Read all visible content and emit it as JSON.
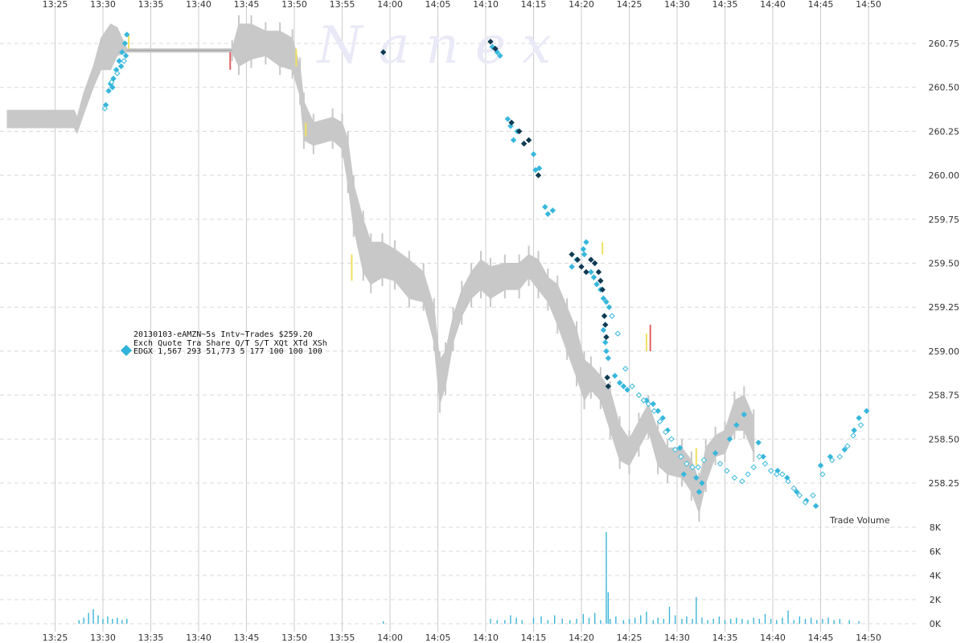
{
  "watermark": "N a n e x",
  "legend": {
    "title": "20130103-eAMZN~5s Intv~Trades $259.20",
    "header": "Exch Quote Tra  Share  Q/T   S/T  XQt XTd XSh",
    "row": "EDGX 1,567 293 51,773     5   177 100 100 100",
    "marker_color": "#2fb3d9"
  },
  "colors": {
    "quote_band": "#c8c8c8",
    "trade_light": "#37b7dc",
    "trade_dark": "#0f3b52",
    "trade_hollow_stroke": "#37b7dc",
    "volume_bar": "#3ab5d6",
    "grid": "#cccccc",
    "accent_yellow": "#f0e060",
    "accent_red": "#e06060"
  },
  "chart_data": {
    "type": "scatter",
    "title": "20130103-eAMZN~5s Intv~Trades $259.20",
    "x_ticks": [
      "13:25",
      "13:30",
      "13:35",
      "13:40",
      "13:45",
      "13:50",
      "13:55",
      "14:00",
      "14:05",
      "14:10",
      "14:15",
      "14:20",
      "14:25",
      "14:30",
      "14:35",
      "14:40",
      "14:45",
      "14:50"
    ],
    "y_ticks": [
      "258.25",
      "258.50",
      "258.75",
      "259.00",
      "259.25",
      "259.50",
      "259.75",
      "260.00",
      "260.25",
      "260.50",
      "260.75"
    ],
    "ylim": [
      258.0,
      260.85
    ],
    "xlim_minutes": [
      0,
      90
    ],
    "volume_label": "Trade Volume",
    "volume_ticks": [
      "0K",
      "2K",
      "4K",
      "6K",
      "8K"
    ],
    "volume_ylim": [
      0,
      8000
    ],
    "grid": true,
    "quote_range": [
      {
        "t": 0.0,
        "lo": 260.27,
        "hi": 260.37
      },
      {
        "t": 7.0,
        "lo": 260.27,
        "hi": 260.37
      },
      {
        "t": 7.3,
        "lo": 260.24,
        "hi": 260.33
      },
      {
        "t": 8.0,
        "lo": 260.35,
        "hi": 260.47
      },
      {
        "t": 9.0,
        "lo": 260.5,
        "hi": 260.62
      },
      {
        "t": 9.8,
        "lo": 260.6,
        "hi": 260.78
      },
      {
        "t": 10.8,
        "lo": 260.6,
        "hi": 260.86
      },
      {
        "t": 11.5,
        "lo": 260.68,
        "hi": 260.84
      },
      {
        "t": 12.5,
        "lo": 260.7,
        "hi": 260.72
      },
      {
        "t": 23.5,
        "lo": 260.7,
        "hi": 260.72
      },
      {
        "t": 24.2,
        "lo": 260.62,
        "hi": 260.86
      },
      {
        "t": 25.5,
        "lo": 260.66,
        "hi": 260.86
      },
      {
        "t": 27.0,
        "lo": 260.68,
        "hi": 260.82
      },
      {
        "t": 28.5,
        "lo": 260.62,
        "hi": 260.82
      },
      {
        "t": 29.8,
        "lo": 260.6,
        "hi": 260.78
      },
      {
        "t": 30.6,
        "lo": 260.45,
        "hi": 260.62
      },
      {
        "t": 31.0,
        "lo": 260.2,
        "hi": 260.42
      },
      {
        "t": 32.0,
        "lo": 260.17,
        "hi": 260.3
      },
      {
        "t": 34.0,
        "lo": 260.2,
        "hi": 260.33
      },
      {
        "t": 35.0,
        "lo": 260.15,
        "hi": 260.3
      },
      {
        "t": 35.6,
        "lo": 259.95,
        "hi": 260.2
      },
      {
        "t": 36.2,
        "lo": 259.7,
        "hi": 259.95
      },
      {
        "t": 37.2,
        "lo": 259.45,
        "hi": 259.75
      },
      {
        "t": 38.0,
        "lo": 259.38,
        "hi": 259.62
      },
      {
        "t": 39.2,
        "lo": 259.42,
        "hi": 259.62
      },
      {
        "t": 40.5,
        "lo": 259.4,
        "hi": 259.58
      },
      {
        "t": 42.0,
        "lo": 259.3,
        "hi": 259.52
      },
      {
        "t": 43.5,
        "lo": 259.28,
        "hi": 259.45
      },
      {
        "t": 44.6,
        "lo": 259.05,
        "hi": 259.25
      },
      {
        "t": 45.2,
        "lo": 258.7,
        "hi": 258.95
      },
      {
        "t": 45.8,
        "lo": 258.8,
        "hi": 259.0
      },
      {
        "t": 46.6,
        "lo": 259.05,
        "hi": 259.2
      },
      {
        "t": 47.5,
        "lo": 259.2,
        "hi": 259.35
      },
      {
        "t": 48.5,
        "lo": 259.3,
        "hi": 259.45
      },
      {
        "t": 49.5,
        "lo": 259.35,
        "hi": 259.52
      },
      {
        "t": 50.5,
        "lo": 259.3,
        "hi": 259.48
      },
      {
        "t": 52.0,
        "lo": 259.35,
        "hi": 259.5
      },
      {
        "t": 53.5,
        "lo": 259.35,
        "hi": 259.5
      },
      {
        "t": 54.5,
        "lo": 259.42,
        "hi": 259.55
      },
      {
        "t": 55.5,
        "lo": 259.35,
        "hi": 259.52
      },
      {
        "t": 56.5,
        "lo": 259.28,
        "hi": 259.42
      },
      {
        "t": 57.5,
        "lo": 259.15,
        "hi": 259.38
      },
      {
        "t": 58.5,
        "lo": 259.0,
        "hi": 259.25
      },
      {
        "t": 59.5,
        "lo": 258.85,
        "hi": 259.12
      },
      {
        "t": 60.3,
        "lo": 258.72,
        "hi": 258.95
      },
      {
        "t": 61.0,
        "lo": 258.78,
        "hi": 258.92
      },
      {
        "t": 62.0,
        "lo": 258.72,
        "hi": 258.86
      },
      {
        "t": 63.0,
        "lo": 258.55,
        "hi": 258.78
      },
      {
        "t": 64.0,
        "lo": 258.38,
        "hi": 258.58
      },
      {
        "t": 65.0,
        "lo": 258.35,
        "hi": 258.5
      },
      {
        "t": 66.0,
        "lo": 258.45,
        "hi": 258.6
      },
      {
        "t": 67.0,
        "lo": 258.55,
        "hi": 258.7
      },
      {
        "t": 68.0,
        "lo": 258.35,
        "hi": 258.55
      },
      {
        "t": 69.0,
        "lo": 258.3,
        "hi": 258.45
      },
      {
        "t": 70.5,
        "lo": 258.28,
        "hi": 258.45
      },
      {
        "t": 71.5,
        "lo": 258.2,
        "hi": 258.38
      },
      {
        "t": 72.3,
        "lo": 258.08,
        "hi": 258.26
      },
      {
        "t": 73.0,
        "lo": 258.25,
        "hi": 258.45
      },
      {
        "t": 74.0,
        "lo": 258.4,
        "hi": 258.52
      },
      {
        "t": 75.0,
        "lo": 258.42,
        "hi": 258.55
      },
      {
        "t": 76.0,
        "lo": 258.55,
        "hi": 258.72
      },
      {
        "t": 77.0,
        "lo": 258.55,
        "hi": 258.75
      },
      {
        "t": 78.0,
        "lo": 258.42,
        "hi": 258.62
      }
    ],
    "trades_light": [
      [
        10.3,
        260.4
      ],
      [
        10.6,
        260.48
      ],
      [
        10.8,
        260.52
      ],
      [
        11.1,
        260.55
      ],
      [
        11.4,
        260.6
      ],
      [
        11.7,
        260.65
      ],
      [
        12.0,
        260.7
      ],
      [
        12.3,
        260.75
      ],
      [
        12.5,
        260.8
      ],
      [
        11.0,
        260.5
      ],
      [
        11.9,
        260.62
      ],
      [
        12.4,
        260.68
      ],
      [
        50.7,
        260.73
      ],
      [
        51.2,
        260.7
      ],
      [
        51.5,
        260.68
      ],
      [
        52.3,
        260.32
      ],
      [
        52.6,
        260.28
      ],
      [
        52.9,
        260.2
      ],
      [
        53.3,
        260.25
      ],
      [
        55.0,
        260.12
      ],
      [
        55.2,
        260.03
      ],
      [
        55.6,
        260.04
      ],
      [
        56.2,
        259.82
      ],
      [
        56.5,
        259.78
      ],
      [
        57.0,
        259.8
      ],
      [
        60.2,
        259.58
      ],
      [
        60.3,
        259.55
      ],
      [
        60.5,
        259.62
      ],
      [
        59.5,
        259.52
      ],
      [
        59.0,
        259.48
      ],
      [
        61.0,
        259.45
      ],
      [
        61.3,
        259.42
      ],
      [
        61.6,
        259.38
      ],
      [
        62.0,
        259.35
      ],
      [
        62.3,
        259.3
      ],
      [
        62.6,
        259.28
      ],
      [
        62.9,
        259.25
      ],
      [
        62.3,
        259.12
      ],
      [
        62.5,
        259.05
      ],
      [
        62.6,
        259.0
      ],
      [
        62.8,
        258.96
      ],
      [
        63.5,
        258.86
      ],
      [
        64.0,
        258.82
      ],
      [
        64.4,
        258.8
      ],
      [
        64.8,
        258.78
      ],
      [
        66.8,
        258.72
      ],
      [
        67.5,
        258.7
      ],
      [
        68.0,
        258.66
      ],
      [
        68.5,
        258.62
      ],
      [
        69.0,
        258.55
      ],
      [
        70.3,
        258.45
      ],
      [
        70.7,
        258.3
      ],
      [
        72.0,
        258.28
      ],
      [
        72.3,
        258.2
      ],
      [
        72.6,
        258.25
      ],
      [
        74.0,
        258.42
      ],
      [
        75.5,
        258.5
      ],
      [
        76.2,
        258.58
      ],
      [
        77.0,
        258.64
      ],
      [
        78.5,
        258.48
      ],
      [
        79.0,
        258.4
      ],
      [
        80.5,
        258.32
      ],
      [
        81.5,
        258.28
      ],
      [
        82.5,
        258.2
      ],
      [
        83.5,
        258.15
      ],
      [
        84.5,
        258.12
      ],
      [
        85.0,
        258.35
      ],
      [
        86.0,
        258.4
      ],
      [
        87.5,
        258.44
      ],
      [
        88.5,
        258.55
      ],
      [
        89.0,
        258.62
      ],
      [
        89.8,
        258.66
      ]
    ],
    "trades_dark": [
      [
        39.3,
        260.7
      ],
      [
        50.5,
        260.76
      ],
      [
        51.0,
        260.72
      ],
      [
        52.7,
        260.3
      ],
      [
        53.5,
        260.25
      ],
      [
        54.0,
        260.18
      ],
      [
        54.5,
        260.2
      ],
      [
        55.5,
        260.0
      ],
      [
        59.0,
        259.55
      ],
      [
        59.6,
        259.52
      ],
      [
        60.0,
        259.48
      ],
      [
        60.5,
        259.45
      ],
      [
        61.0,
        259.52
      ],
      [
        61.4,
        259.5
      ],
      [
        61.8,
        259.45
      ],
      [
        62.0,
        259.4
      ],
      [
        62.2,
        259.35
      ],
      [
        62.4,
        259.2
      ],
      [
        62.5,
        259.15
      ],
      [
        62.6,
        259.08
      ],
      [
        62.7,
        258.85
      ],
      [
        62.8,
        258.8
      ]
    ],
    "trades_hollow": [
      [
        10.2,
        260.38
      ],
      [
        10.9,
        260.53
      ],
      [
        11.5,
        260.58
      ],
      [
        12.2,
        260.65
      ],
      [
        63.2,
        259.2
      ],
      [
        63.8,
        259.1
      ],
      [
        64.6,
        258.9
      ],
      [
        65.3,
        258.8
      ],
      [
        66.0,
        258.75
      ],
      [
        66.5,
        258.72
      ],
      [
        67.0,
        258.7
      ],
      [
        67.6,
        258.66
      ],
      [
        68.2,
        258.6
      ],
      [
        68.8,
        258.54
      ],
      [
        69.4,
        258.5
      ],
      [
        69.8,
        258.44
      ],
      [
        70.4,
        258.4
      ],
      [
        71.0,
        258.36
      ],
      [
        71.6,
        258.34
      ],
      [
        72.2,
        258.34
      ],
      [
        72.8,
        258.38
      ],
      [
        74.5,
        258.36
      ],
      [
        75.2,
        258.32
      ],
      [
        76.0,
        258.28
      ],
      [
        76.8,
        258.26
      ],
      [
        77.4,
        258.3
      ],
      [
        78.0,
        258.34
      ],
      [
        78.6,
        258.4
      ],
      [
        79.2,
        258.36
      ],
      [
        79.8,
        258.32
      ],
      [
        80.4,
        258.3
      ],
      [
        81.0,
        258.3
      ],
      [
        81.6,
        258.26
      ],
      [
        82.2,
        258.22
      ],
      [
        82.8,
        258.18
      ],
      [
        83.4,
        258.14
      ],
      [
        84.2,
        258.18
      ],
      [
        85.2,
        258.3
      ],
      [
        86.2,
        258.38
      ],
      [
        87.0,
        258.4
      ],
      [
        87.8,
        258.46
      ],
      [
        88.4,
        258.52
      ],
      [
        89.2,
        258.58
      ]
    ],
    "volume": [
      [
        7.5,
        0.3
      ],
      [
        8.0,
        0.5
      ],
      [
        8.5,
        0.9
      ],
      [
        9.0,
        1.2
      ],
      [
        9.5,
        0.7
      ],
      [
        10.0,
        0.4
      ],
      [
        10.5,
        0.6
      ],
      [
        11.0,
        0.4
      ],
      [
        11.5,
        0.5
      ],
      [
        12.0,
        0.3
      ],
      [
        12.5,
        0.4
      ],
      [
        39.3,
        0.2
      ],
      [
        50.5,
        0.4
      ],
      [
        51.2,
        0.3
      ],
      [
        52.0,
        0.3
      ],
      [
        52.6,
        0.7
      ],
      [
        53.2,
        0.5
      ],
      [
        53.8,
        0.3
      ],
      [
        55.0,
        0.5
      ],
      [
        55.8,
        0.6
      ],
      [
        56.5,
        0.3
      ],
      [
        57.2,
        0.7
      ],
      [
        58.0,
        0.4
      ],
      [
        58.8,
        0.3
      ],
      [
        59.5,
        0.4
      ],
      [
        60.2,
        0.8
      ],
      [
        60.8,
        0.5
      ],
      [
        61.4,
        0.9
      ],
      [
        62.0,
        0.3
      ],
      [
        62.6,
        7.6
      ],
      [
        62.8,
        2.6
      ],
      [
        63.0,
        0.4
      ],
      [
        63.6,
        0.6
      ],
      [
        64.4,
        0.3
      ],
      [
        65.0,
        0.4
      ],
      [
        65.6,
        0.5
      ],
      [
        66.2,
        0.7
      ],
      [
        66.8,
        1.0
      ],
      [
        67.5,
        0.3
      ],
      [
        68.0,
        0.5
      ],
      [
        68.6,
        0.4
      ],
      [
        69.2,
        1.4
      ],
      [
        69.8,
        0.7
      ],
      [
        70.5,
        0.4
      ],
      [
        71.0,
        0.6
      ],
      [
        71.6,
        0.4
      ],
      [
        72.0,
        2.2
      ],
      [
        72.6,
        0.5
      ],
      [
        73.2,
        0.3
      ],
      [
        73.8,
        0.4
      ],
      [
        74.4,
        0.6
      ],
      [
        75.0,
        0.3
      ],
      [
        75.6,
        0.4
      ],
      [
        76.2,
        0.5
      ],
      [
        76.8,
        0.4
      ],
      [
        77.4,
        0.3
      ],
      [
        78.0,
        0.5
      ],
      [
        78.6,
        0.4
      ],
      [
        79.2,
        0.8
      ],
      [
        79.8,
        0.4
      ],
      [
        80.4,
        0.3
      ],
      [
        81.0,
        0.5
      ],
      [
        81.6,
        1.1
      ],
      [
        82.2,
        0.3
      ],
      [
        82.8,
        0.6
      ],
      [
        83.4,
        0.4
      ],
      [
        84.0,
        0.5
      ],
      [
        84.6,
        0.3
      ],
      [
        85.2,
        0.4
      ],
      [
        85.8,
        0.5
      ],
      [
        86.4,
        0.3
      ],
      [
        87.0,
        0.4
      ],
      [
        88.0,
        0.3
      ],
      [
        89.0,
        0.2
      ]
    ]
  }
}
